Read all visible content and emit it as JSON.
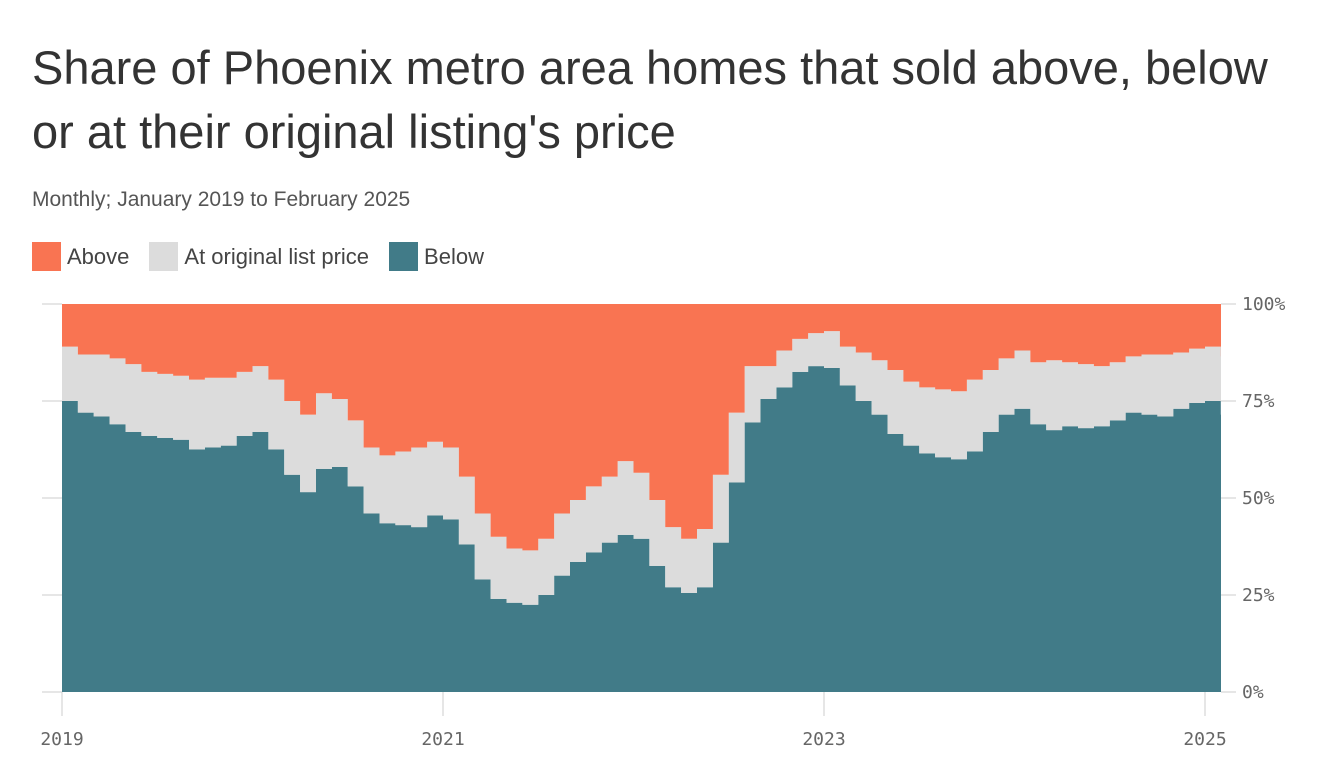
{
  "title": "Share of Phoenix metro area homes that sold above, below or at their original listing's price",
  "subtitle": "Monthly; January 2019 to February 2025",
  "legend": [
    {
      "label": "Above",
      "color": "#f97452"
    },
    {
      "label": "At original list price",
      "color": "#dcdcdc"
    },
    {
      "label": "Below",
      "color": "#417b88"
    }
  ],
  "chart_data": {
    "type": "area",
    "stacked": true,
    "step": true,
    "x_start": "2019-01",
    "x_end": "2025-02",
    "x_ticks": [
      "2019",
      "2021",
      "2023",
      "2025"
    ],
    "y_ticks": [
      "100%",
      "75%",
      "50%",
      "25%",
      "0%"
    ],
    "ylim": [
      0,
      100
    ],
    "series": [
      {
        "name": "Below",
        "color": "#417b88",
        "values": [
          75,
          72,
          71,
          69,
          67,
          66,
          65.5,
          65,
          62.5,
          63,
          63.5,
          66,
          67,
          62.5,
          56,
          51.5,
          57.5,
          58,
          53,
          46,
          43.5,
          43,
          42.5,
          45.5,
          44.5,
          38,
          29,
          24,
          23,
          22.5,
          25,
          30,
          33.5,
          36,
          38.5,
          40.5,
          39.5,
          32.5,
          27,
          25.5,
          27,
          38.5,
          54,
          69.5,
          75.5,
          78.5,
          82.5,
          84,
          83.5,
          79,
          75,
          71.5,
          66.5,
          63.5,
          61.5,
          60.5,
          60,
          62,
          67,
          71.5,
          73,
          69,
          67.5,
          68.5,
          68,
          68.5,
          70,
          72,
          71.5,
          71,
          73,
          74.5,
          75,
          71.5
        ]
      },
      {
        "name": "At original list price",
        "color": "#dcdcdc",
        "values": [
          14,
          15,
          16,
          17,
          17.5,
          16.5,
          16.5,
          16.5,
          18,
          18,
          17.5,
          16.5,
          17,
          18,
          19,
          20,
          19.5,
          17.5,
          17,
          17,
          17.5,
          19,
          20.5,
          19,
          18.5,
          17.5,
          17,
          16,
          14,
          14,
          14.5,
          16,
          16,
          17,
          17,
          19,
          17,
          17,
          15.5,
          14,
          15,
          17.5,
          18,
          14.5,
          8.5,
          9.5,
          8.5,
          8.5,
          9.5,
          10,
          12.5,
          14,
          16.5,
          16.5,
          17,
          17.5,
          17.5,
          18.5,
          16,
          14.5,
          15,
          16,
          18,
          16.5,
          16.5,
          15.5,
          15,
          14.5,
          15.5,
          16,
          14.5,
          14,
          14,
          15
        ]
      },
      {
        "name": "Above",
        "color": "#f97452",
        "values": [
          11,
          13,
          13,
          14,
          15.5,
          17.5,
          18,
          18.5,
          19.5,
          19,
          19,
          17.5,
          16,
          19.5,
          25,
          28.5,
          23,
          24.5,
          30,
          37,
          39,
          38,
          37,
          35.5,
          37,
          44.5,
          54,
          60,
          63,
          63.5,
          60.5,
          54,
          50.5,
          47,
          44.5,
          40.5,
          43.5,
          50.5,
          57.5,
          60.5,
          58,
          44,
          28,
          16,
          16,
          12,
          9,
          7.5,
          7,
          11,
          12.5,
          14.5,
          17,
          20,
          21.5,
          22,
          22.5,
          19.5,
          17,
          14,
          12,
          15,
          14.5,
          15,
          15.5,
          16,
          15,
          13.5,
          13,
          13,
          12.5,
          11.5,
          11,
          13.5
        ]
      }
    ]
  }
}
